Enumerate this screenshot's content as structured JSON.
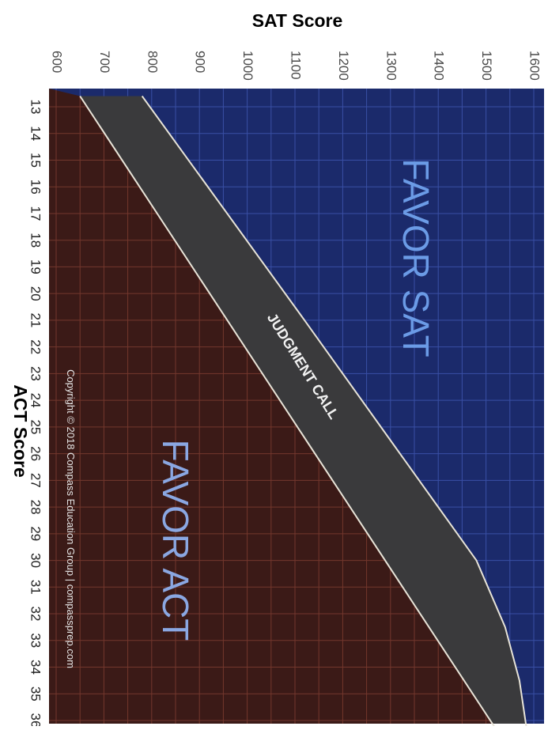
{
  "chart_data": {
    "type": "area",
    "x_axis_title": "SAT Score",
    "y_axis_title": "ACT Score",
    "sat_ticks": [
      600,
      700,
      800,
      900,
      1000,
      1100,
      1200,
      1300,
      1400,
      1500,
      1600
    ],
    "act_ticks": [
      13,
      14,
      15,
      16,
      17,
      18,
      19,
      20,
      21,
      22,
      23,
      24,
      25,
      26,
      27,
      28,
      29,
      30,
      31,
      32,
      33,
      34,
      35,
      36
    ],
    "xlim": [
      600,
      1600
    ],
    "ylim": [
      13,
      36
    ],
    "regions": [
      {
        "label": "FAVOR SAT",
        "color": "#1b2a6b"
      },
      {
        "label": "JUDGMENT CALL",
        "color": "#3a3a3c"
      },
      {
        "label": "FAVOR ACT",
        "color": "#3b1a17"
      }
    ],
    "boundaries": [
      {
        "name": "act_sat_boundary",
        "points": [
          [
            650,
            12.6
          ],
          [
            1520,
            36.3
          ]
        ]
      },
      {
        "name": "judgment_sat_boundary",
        "points": [
          [
            780,
            12.6
          ],
          [
            1120,
            21.0
          ],
          [
            1480,
            30.0
          ],
          [
            1540,
            32.5
          ],
          [
            1570,
            34.5
          ],
          [
            1585,
            36.3
          ]
        ]
      }
    ],
    "copyright": "Copyright © 2018 Compass Education Group | compassprep.com",
    "grid": true
  },
  "colors": {
    "favor_sat": "#1b2a6b",
    "favor_act": "#3b1a17",
    "judgment": "#3a3a3c",
    "grid_sat": "#3f56b0",
    "grid_act": "#7a3b30",
    "boundary_line": "#e8e4d8",
    "label_sat": "#6b9be6",
    "label_act": "#8aa7e2",
    "text_dark": "#4a4a4a"
  }
}
